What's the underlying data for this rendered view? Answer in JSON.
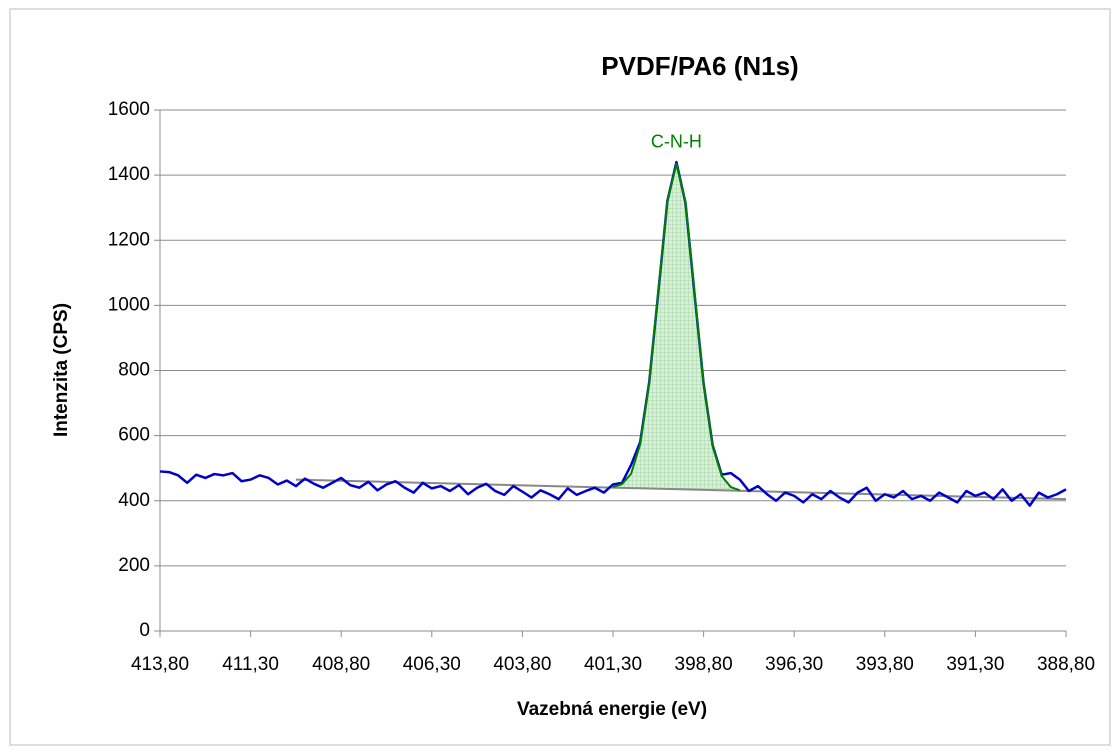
{
  "chart_data": {
    "type": "line",
    "title": "PVDF/PA6 (N1s)",
    "x_label": "Vazebná energie (eV)",
    "y_label": "Intenzita (CPS)",
    "xlim": [
      413.8,
      388.8
    ],
    "ylim": [
      0,
      1600
    ],
    "xticks": [
      {
        "value": 413.8,
        "label": "413,80"
      },
      {
        "value": 411.3,
        "label": "411,30"
      },
      {
        "value": 408.8,
        "label": "408,80"
      },
      {
        "value": 406.3,
        "label": "406,30"
      },
      {
        "value": 403.8,
        "label": "403,80"
      },
      {
        "value": 401.3,
        "label": "401,30"
      },
      {
        "value": 398.8,
        "label": "398,80"
      },
      {
        "value": 396.3,
        "label": "396,30"
      },
      {
        "value": 393.8,
        "label": "393,80"
      },
      {
        "value": 391.3,
        "label": "391,30"
      },
      {
        "value": 388.8,
        "label": "388,80"
      }
    ],
    "yticks": [
      0,
      200,
      400,
      600,
      800,
      1000,
      1200,
      1400,
      1600
    ],
    "grid": true,
    "series": [
      {
        "color": "#0000cc",
        "x": [
          413.8,
          413.55,
          413.3,
          413.05,
          412.8,
          412.55,
          412.3,
          412.05,
          411.8,
          411.55,
          411.3,
          411.05,
          410.8,
          410.55,
          410.3,
          410.05,
          409.8,
          409.55,
          409.3,
          409.05,
          408.8,
          408.55,
          408.3,
          408.05,
          407.8,
          407.55,
          407.3,
          407.05,
          406.8,
          406.55,
          406.3,
          406.05,
          405.8,
          405.55,
          405.3,
          405.05,
          404.8,
          404.55,
          404.3,
          404.05,
          403.8,
          403.55,
          403.3,
          403.05,
          402.8,
          402.55,
          402.3,
          402.05,
          401.8,
          401.55,
          401.3,
          401.05,
          400.8,
          400.55,
          400.3,
          400.05,
          399.8,
          399.55,
          399.3,
          399.05,
          398.8,
          398.55,
          398.3,
          398.05,
          397.8,
          397.55,
          397.3,
          397.05,
          396.8,
          396.55,
          396.3,
          396.05,
          395.8,
          395.55,
          395.3,
          395.05,
          394.8,
          394.55,
          394.3,
          394.05,
          393.8,
          393.55,
          393.3,
          393.05,
          392.8,
          392.55,
          392.3,
          392.05,
          391.8,
          391.55,
          391.3,
          391.05,
          390.8,
          390.55,
          390.3,
          390.05,
          389.8,
          389.55,
          389.3,
          389.05,
          388.8
        ],
        "values": [
          490,
          488,
          478,
          455,
          480,
          470,
          482,
          478,
          485,
          460,
          465,
          478,
          470,
          450,
          462,
          445,
          468,
          452,
          440,
          455,
          470,
          448,
          440,
          458,
          432,
          450,
          460,
          440,
          425,
          455,
          438,
          445,
          430,
          448,
          420,
          440,
          452,
          430,
          418,
          445,
          428,
          410,
          432,
          420,
          405,
          438,
          418,
          430,
          440,
          425,
          450,
          455,
          510,
          580,
          765,
          1040,
          1320,
          1440,
          1315,
          1035,
          760,
          570,
          480,
          485,
          465,
          430,
          445,
          420,
          400,
          425,
          415,
          395,
          420,
          405,
          430,
          410,
          395,
          425,
          440,
          400,
          420,
          410,
          430,
          405,
          415,
          400,
          425,
          410,
          395,
          430,
          415,
          425,
          405,
          435,
          400,
          420,
          385,
          425,
          410,
          420,
          435
        ]
      },
      {
        "name": "C-N-H",
        "color": "#008000",
        "x": [
          401.3,
          401.05,
          400.8,
          400.55,
          400.3,
          400.05,
          399.8,
          399.55,
          399.3,
          399.05,
          398.8,
          398.55,
          398.3,
          398.05,
          397.8
        ],
        "values": [
          442,
          451,
          483,
          573,
          762,
          1044,
          1318,
          1435,
          1317,
          1041,
          758,
          568,
          476,
          442,
          432
        ]
      },
      {
        "color": "#888888",
        "x": [
          410.05,
          388.8
        ],
        "values": [
          465,
          405
        ]
      }
    ]
  }
}
